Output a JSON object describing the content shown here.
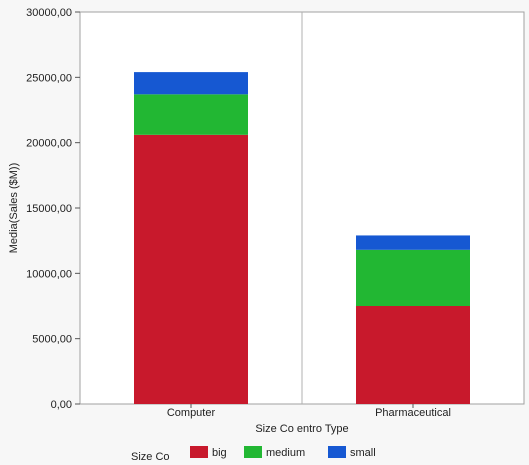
{
  "chart_data": {
    "type": "bar",
    "stacked": true,
    "categories": [
      "Computer",
      "Pharmaceutical"
    ],
    "series": [
      {
        "name": "big",
        "values": [
          20600,
          7500
        ],
        "color": "#c8192c"
      },
      {
        "name": "medium",
        "values": [
          3100,
          4300
        ],
        "color": "#22b733"
      },
      {
        "name": "small",
        "values": [
          1700,
          1100
        ],
        "color": "#1658d2"
      }
    ],
    "xlabel": "Size Co entro Type",
    "ylabel": "Media(Sales ($M))",
    "ylim": [
      0,
      30000
    ],
    "yticks": [
      0,
      5000,
      10000,
      15000,
      20000,
      25000,
      30000
    ],
    "ytick_labels": [
      "0,00",
      "5000,00",
      "10000,00",
      "15000,00",
      "20000,00",
      "25000,00",
      "30000,00"
    ],
    "legend": {
      "title": "Size Co",
      "placement": "bottom-left"
    },
    "grid": false
  }
}
